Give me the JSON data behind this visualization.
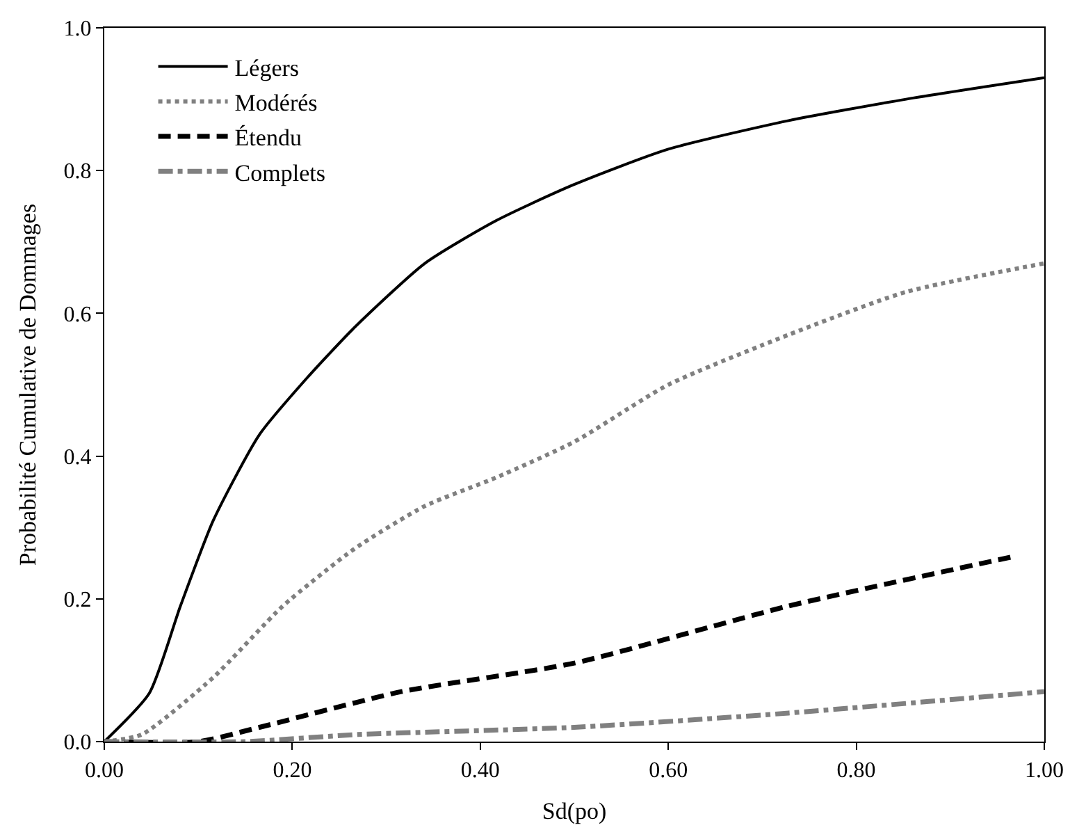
{
  "chart_data": {
    "type": "line",
    "xlabel": "Sd(po)",
    "ylabel": "Probabilité Cumulative de Dommages",
    "xlim": [
      0,
      1
    ],
    "ylim": [
      0,
      1
    ],
    "xticks": [
      {
        "value": 0,
        "label": "0.00"
      },
      {
        "value": 0.2,
        "label": "0.20"
      },
      {
        "value": 0.4,
        "label": "0.40"
      },
      {
        "value": 0.6,
        "label": "0.60"
      },
      {
        "value": 0.8,
        "label": "0.80"
      },
      {
        "value": 1,
        "label": "1.00"
      }
    ],
    "yticks": [
      {
        "value": 0,
        "label": "0.0"
      },
      {
        "value": 0.2,
        "label": "0.2"
      },
      {
        "value": 0.4,
        "label": "0.4"
      },
      {
        "value": 0.6,
        "label": "0.6"
      },
      {
        "value": 0.8,
        "label": "0.8"
      },
      {
        "value": 1,
        "label": "1.0"
      }
    ],
    "grid": false,
    "legend": "top left",
    "marker": "none",
    "series": [
      {
        "name": "Légers",
        "color": "#000000",
        "line_style": "solid",
        "x": [
          0,
          0.048,
          0.081,
          0.116,
          0.165,
          0.216,
          0.266,
          0.341,
          0.417,
          0.499,
          0.6,
          0.728,
          0.853,
          1.0
        ],
        "values": [
          0,
          0.068,
          0.19,
          0.31,
          0.43,
          0.51,
          0.58,
          0.67,
          0.73,
          0.78,
          0.83,
          0.87,
          0.9,
          0.93
        ]
      },
      {
        "name": "Modérés",
        "color": "#808080",
        "line_style": "dotted",
        "x": [
          0,
          0.04,
          0.116,
          0.19,
          0.266,
          0.341,
          0.417,
          0.5,
          0.6,
          0.728,
          0.853,
          1.0
        ],
        "values": [
          0,
          0.01,
          0.09,
          0.19,
          0.27,
          0.33,
          0.37,
          0.42,
          0.5,
          0.57,
          0.63,
          0.67
        ]
      },
      {
        "name": "Étendu",
        "color": "#000000",
        "line_style": "dashed",
        "x": [
          0,
          0.1,
          0.165,
          0.316,
          0.5,
          0.728,
          0.97
        ],
        "values": [
          0,
          0.0,
          0.02,
          0.07,
          0.11,
          0.19,
          0.26
        ]
      },
      {
        "name": "Complets",
        "color": "#808080",
        "line_style": "dashdot",
        "x": [
          0,
          0.15,
          0.27,
          0.5,
          0.728,
          1.0
        ],
        "values": [
          0,
          0.0,
          0.01,
          0.02,
          0.04,
          0.07
        ]
      }
    ]
  }
}
